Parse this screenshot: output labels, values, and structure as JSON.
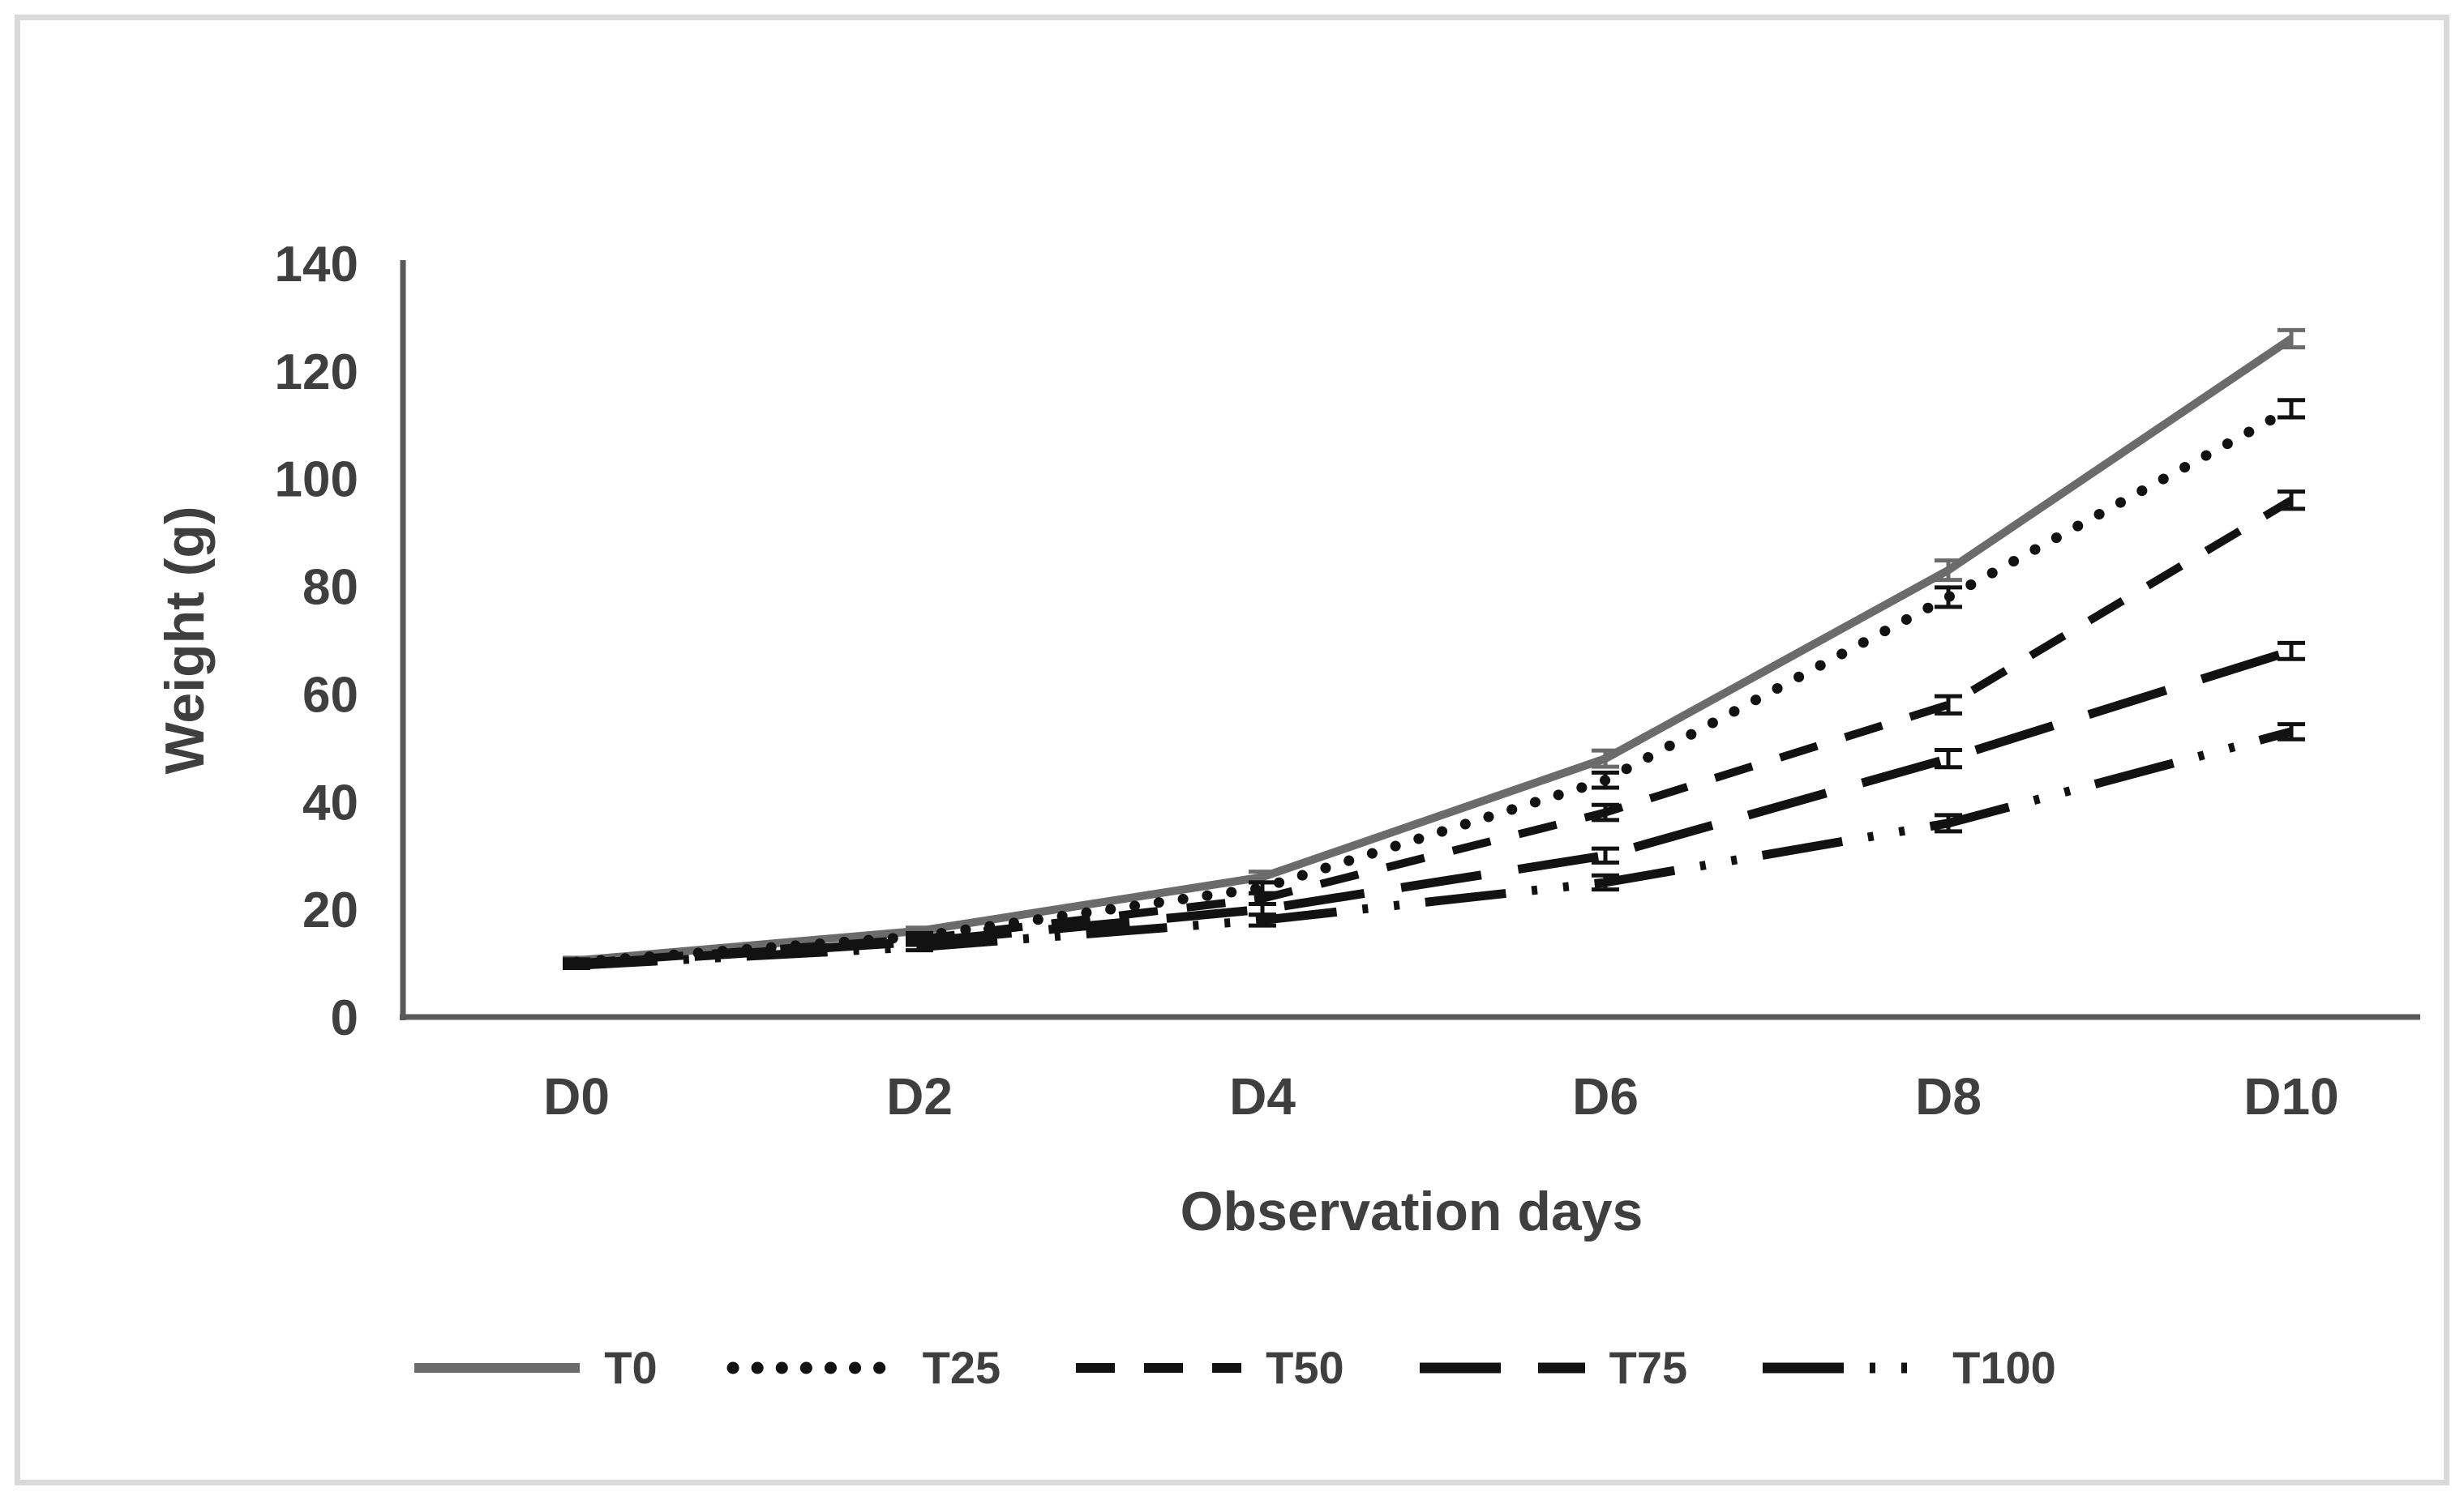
{
  "chart_data": {
    "type": "line",
    "title": "",
    "xlabel": "Observation days",
    "ylabel": "Weight (g)",
    "categories": [
      "D0",
      "D2",
      "D4",
      "D6",
      "D8",
      "D10"
    ],
    "ylim": [
      0,
      140
    ],
    "y_ticks": [
      0,
      20,
      40,
      60,
      80,
      100,
      120,
      140
    ],
    "grid": false,
    "legend_position": "bottom",
    "error_bars": true,
    "axis_color": "#595959",
    "text_color": "#3f3f3f",
    "series": [
      {
        "name": "T0",
        "dash": "solid",
        "color": "#6b6b6b",
        "values": [
          10.5,
          16,
          26,
          48,
          83,
          126
        ],
        "errors": [
          0.5,
          0.6,
          1.0,
          1.5,
          1.8,
          1.6
        ]
      },
      {
        "name": "T25",
        "dash": "dotted",
        "color": "#121212",
        "values": [
          10.2,
          15,
          24,
          44,
          78,
          113
        ],
        "errors": [
          0.5,
          0.6,
          1.0,
          1.4,
          1.8,
          1.6
        ]
      },
      {
        "name": "T50",
        "dash": "dashed",
        "color": "#121212",
        "values": [
          10,
          14.5,
          22,
          38,
          58,
          96
        ],
        "errors": [
          0.5,
          0.6,
          1.0,
          1.4,
          1.6,
          1.6
        ]
      },
      {
        "name": "T75",
        "dash": "long-dash",
        "color": "#121212",
        "values": [
          9.8,
          14,
          20,
          30,
          48,
          68
        ],
        "errors": [
          0.5,
          0.6,
          1.0,
          1.3,
          1.6,
          1.5
        ]
      },
      {
        "name": "T100",
        "dash": "dash-dot-dot",
        "color": "#121212",
        "values": [
          9.6,
          13,
          18,
          25,
          36,
          53
        ],
        "errors": [
          0.5,
          0.6,
          1.0,
          1.3,
          1.5,
          1.4
        ]
      }
    ]
  }
}
